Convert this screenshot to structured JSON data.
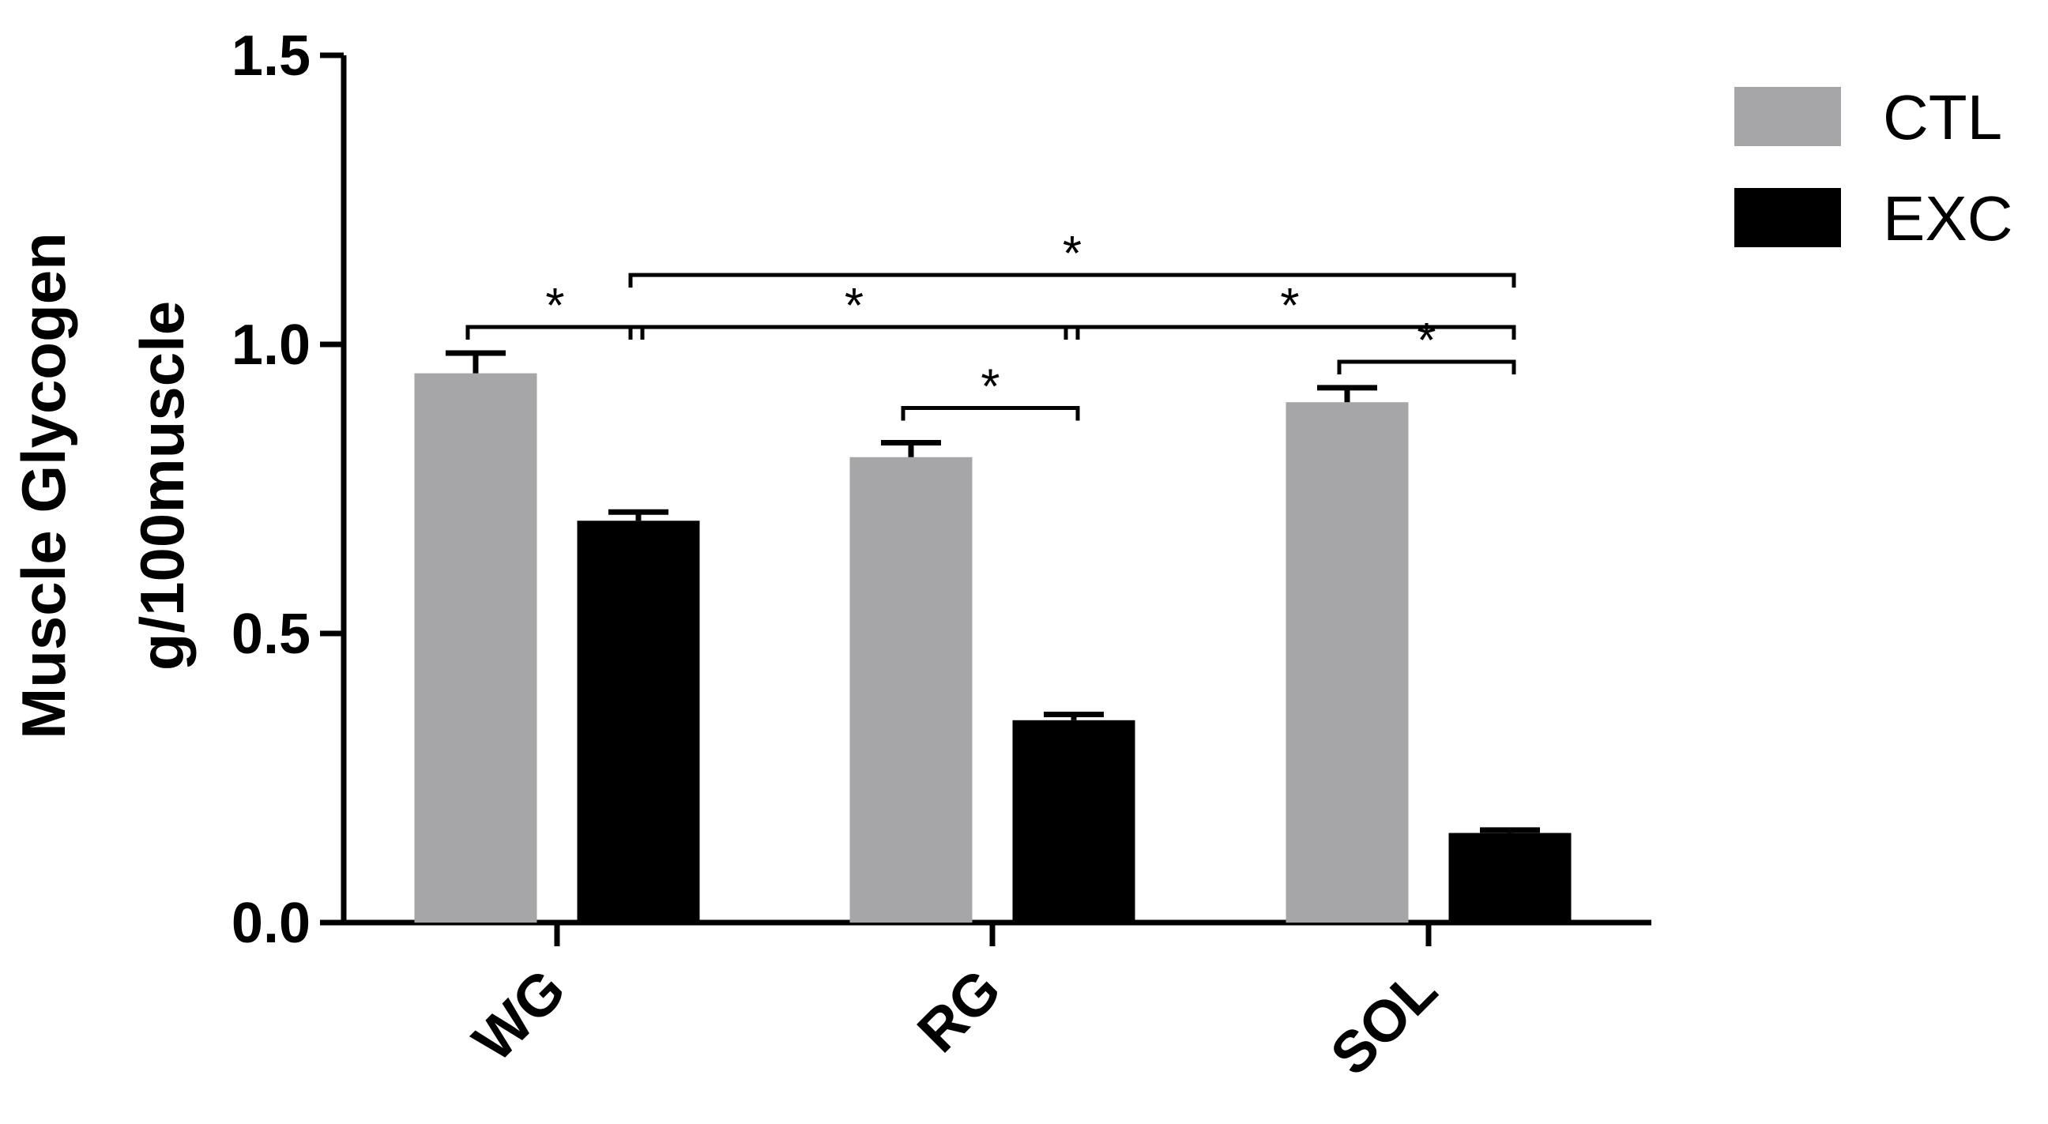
{
  "chart_data": {
    "type": "bar",
    "title": "",
    "xlabel": "",
    "ylabel": [
      "Muscle Glycogen",
      "g/100muscle"
    ],
    "ylim": [
      0,
      1.5
    ],
    "yticks": [
      0.0,
      0.5,
      1.0,
      1.5
    ],
    "ytick_labels": [
      "0.0",
      "0.5",
      "1.0",
      "1.5"
    ],
    "categories": [
      "WG",
      "RG",
      "SOL"
    ],
    "series": [
      {
        "name": "CTL",
        "color": "#a6a6a8",
        "values": [
          0.95,
          0.805,
          0.9
        ],
        "errors": [
          0.035,
          0.025,
          0.025
        ]
      },
      {
        "name": "EXC",
        "color": "#000000",
        "values": [
          0.695,
          0.35,
          0.155
        ],
        "errors": [
          0.015,
          0.01,
          0.005
        ]
      }
    ],
    "legend": {
      "position": "top-right",
      "entries": [
        "CTL",
        "EXC"
      ]
    },
    "significance": [
      {
        "label": "*",
        "from": [
          0,
          "CTL"
        ],
        "to": [
          0,
          "EXC"
        ],
        "level": 1.03
      },
      {
        "label": "*",
        "from": [
          0,
          "EXC"
        ],
        "to": [
          1,
          "EXC"
        ],
        "level": 1.03
      },
      {
        "label": "*",
        "from": [
          1,
          "CTL"
        ],
        "to": [
          1,
          "EXC"
        ],
        "level": 0.89
      },
      {
        "label": "*",
        "from": [
          1,
          "EXC"
        ],
        "to": [
          2,
          "EXC"
        ],
        "level": 1.03
      },
      {
        "label": "*",
        "from": [
          2,
          "CTL"
        ],
        "to": [
          2,
          "EXC"
        ],
        "level": 0.97
      },
      {
        "label": "*",
        "from": [
          0,
          "EXC"
        ],
        "to": [
          2,
          "EXC"
        ],
        "level": 1.12
      }
    ]
  }
}
